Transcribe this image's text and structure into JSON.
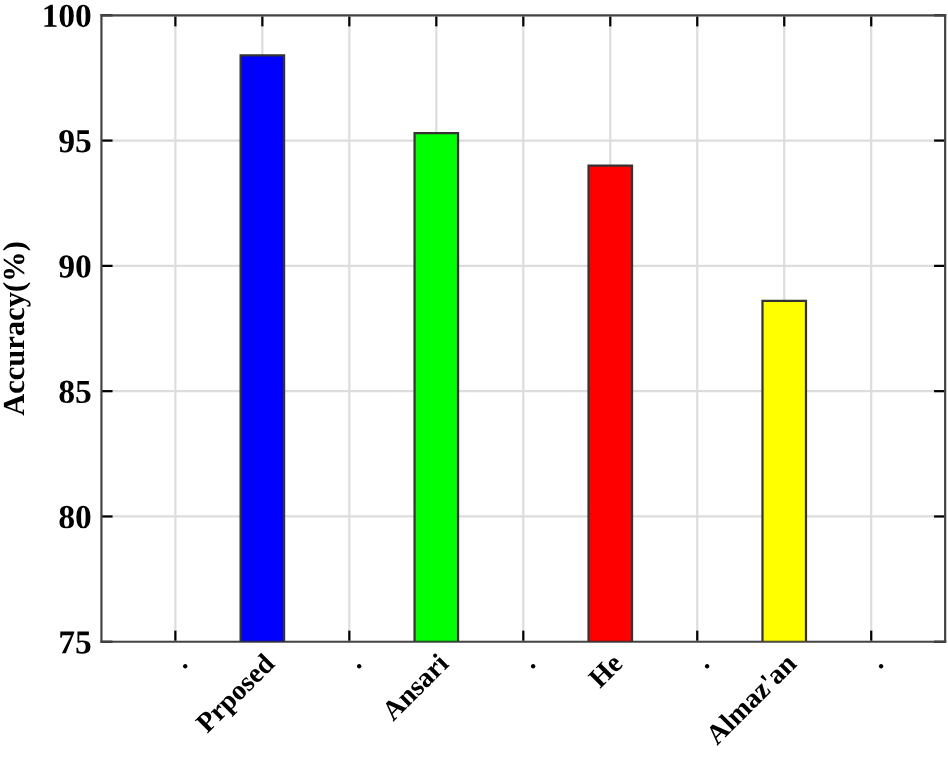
{
  "chart_data": {
    "type": "bar",
    "ylabel": "Accuracy(%)",
    "categories": [
      ".",
      "Prposed",
      ".",
      "Ansari",
      ".",
      "He",
      ".",
      "Almaz'an",
      "."
    ],
    "values": [
      null,
      98.4,
      null,
      95.3,
      null,
      94.0,
      null,
      88.6,
      null
    ],
    "colors": [
      "#ffffff",
      "#0000ff",
      "#ffffff",
      "#00ff00",
      "#ffffff",
      "#ff0000",
      "#ffffff",
      "#ffff00",
      "#ffffff"
    ],
    "ylim": [
      75,
      100
    ],
    "yticks": [
      75,
      80,
      85,
      90,
      95,
      100
    ],
    "grid": true
  }
}
